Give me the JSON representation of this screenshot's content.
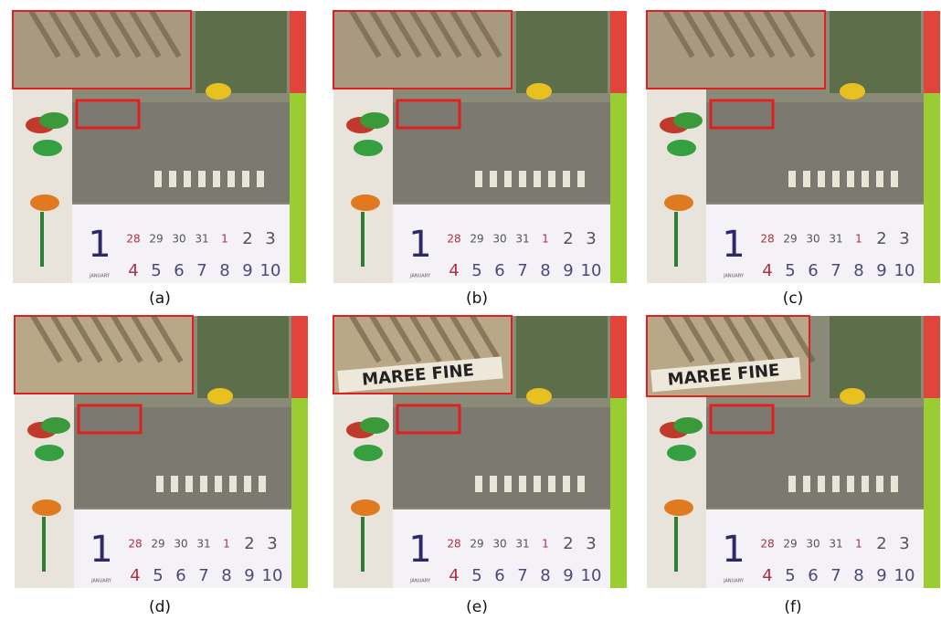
{
  "panels": [
    {
      "caption": "(a)"
    },
    {
      "caption": "(b)"
    },
    {
      "caption": "(c)"
    },
    {
      "caption": "(d)"
    },
    {
      "caption": "(e)",
      "inset_text": "MAREE FINE"
    },
    {
      "caption": "(f)",
      "inset_text": "MAREE FINE"
    }
  ],
  "calendar": {
    "day": "1",
    "month": "JANUARY",
    "week1": [
      "28",
      "29",
      "30",
      "31",
      "1",
      "2",
      "3"
    ],
    "week2": [
      "4",
      "5",
      "6",
      "7",
      "8",
      "9",
      "10"
    ]
  }
}
